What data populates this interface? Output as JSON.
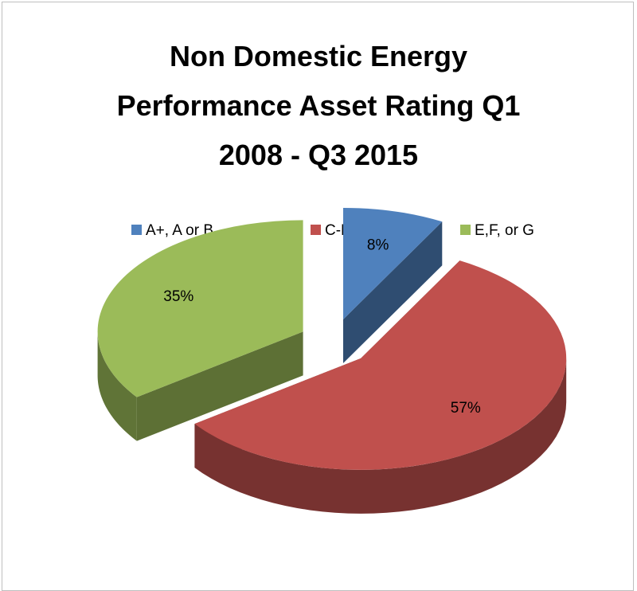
{
  "chart_data": {
    "type": "pie",
    "title": "Non Domestic Energy Performance Asset Rating Q1 2008 - Q3 2015",
    "categories": [
      "A+, A or B",
      "C-D",
      "E,F, or G"
    ],
    "values": [
      8,
      57,
      35
    ],
    "value_labels": [
      "8%",
      "57%",
      "35%"
    ],
    "colors": [
      "#4f81bd",
      "#c0504d",
      "#9bbb59"
    ],
    "legend": "top",
    "three_d": true,
    "exploded": true
  }
}
